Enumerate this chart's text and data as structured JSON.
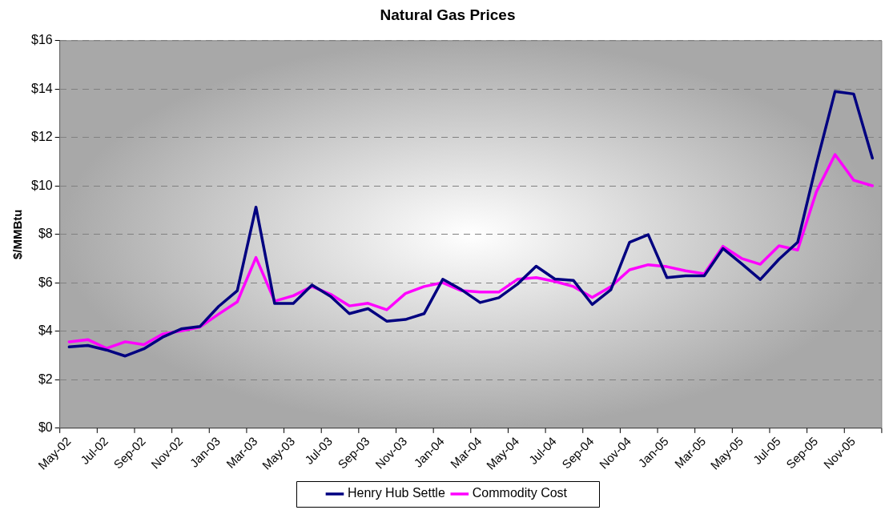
{
  "chart_data": {
    "type": "line",
    "title": "Natural Gas Prices",
    "ylabel": "$/MMBtu",
    "categories": [
      "May-02",
      null,
      "Jul-02",
      null,
      "Sep-02",
      null,
      "Nov-02",
      null,
      "Jan-03",
      null,
      "Mar-03",
      null,
      "May-03",
      null,
      "Jul-03",
      null,
      "Sep-03",
      null,
      "Nov-03",
      null,
      "Jan-04",
      null,
      "Mar-04",
      null,
      "May-04",
      null,
      "Jul-04",
      null,
      "Sep-04",
      null,
      "Nov-04",
      null,
      "Jan-05",
      null,
      "Mar-05",
      null,
      "May-05",
      null,
      "Jul-05",
      null,
      "Sep-05",
      null,
      "Nov-05",
      null
    ],
    "series": [
      {
        "name": "Henry Hub Settle",
        "color": "#000080",
        "values": [
          3.36,
          3.42,
          3.23,
          2.98,
          3.28,
          3.76,
          4.1,
          4.2,
          5.03,
          5.68,
          9.13,
          5.15,
          5.15,
          5.91,
          5.44,
          4.73,
          4.94,
          4.42,
          4.49,
          4.73,
          6.15,
          5.72,
          5.19,
          5.39,
          5.95,
          6.69,
          6.16,
          6.1,
          5.11,
          5.72,
          7.68,
          7.99,
          6.22,
          6.29,
          6.29,
          7.42,
          6.79,
          6.14,
          6.98,
          7.68,
          10.9,
          13.9,
          13.8,
          11.15
        ]
      },
      {
        "name": "Commodity Cost",
        "color": "#ff00ff",
        "values": [
          3.57,
          3.66,
          3.3,
          3.57,
          3.45,
          3.89,
          4.02,
          4.18,
          4.71,
          5.22,
          7.05,
          5.25,
          5.47,
          5.85,
          5.53,
          5.05,
          5.16,
          4.89,
          5.56,
          5.85,
          6.01,
          5.68,
          5.62,
          5.62,
          6.15,
          6.22,
          6.06,
          5.85,
          5.4,
          5.85,
          6.54,
          6.75,
          6.67,
          6.5,
          6.38,
          7.51,
          7.01,
          6.77,
          7.53,
          7.36,
          9.76,
          11.3,
          10.24,
          10.01
        ]
      }
    ],
    "ylim": [
      0,
      16
    ],
    "yticks": [
      {
        "value": 0,
        "label": "$0"
      },
      {
        "value": 2,
        "label": "$2"
      },
      {
        "value": 4,
        "label": "$4"
      },
      {
        "value": 6,
        "label": "$6"
      },
      {
        "value": 8,
        "label": "$8"
      },
      {
        "value": 10,
        "label": "$10"
      },
      {
        "value": 12,
        "label": "$12"
      },
      {
        "value": 14,
        "label": "$14"
      },
      {
        "value": 16,
        "label": "$16"
      }
    ],
    "grid": "y",
    "legend": "bottom",
    "marker": "none",
    "line_style": "solid"
  }
}
